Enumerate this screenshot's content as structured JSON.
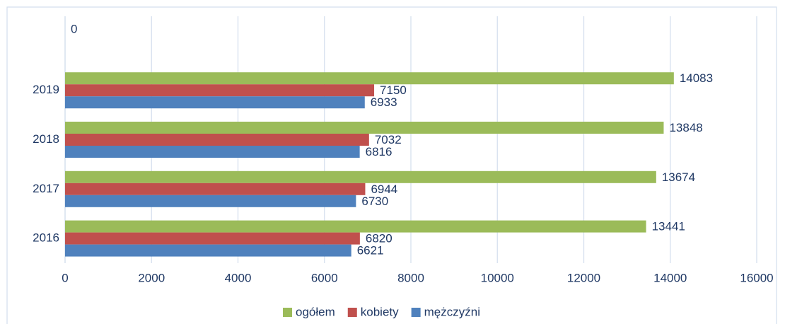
{
  "chart_data": {
    "type": "hbar",
    "categories": [
      "2016",
      "2017",
      "2018",
      "2019",
      null
    ],
    "series": [
      {
        "name": "ogółem",
        "color": "#9bbb59",
        "values": [
          13441,
          13674,
          13848,
          14083,
          0
        ]
      },
      {
        "name": "kobiety",
        "color": "#c0504d",
        "values": [
          6820,
          6944,
          7032,
          7150,
          null
        ]
      },
      {
        "name": "mężczyźni",
        "color": "#4f81bd",
        "values": [
          6621,
          6730,
          6816,
          6933,
          null
        ]
      }
    ],
    "xlim": [
      0,
      16000
    ],
    "xticks": [
      0,
      2000,
      4000,
      6000,
      8000,
      10000,
      12000,
      14000,
      16000
    ],
    "grid": true,
    "legend": "bottom"
  }
}
